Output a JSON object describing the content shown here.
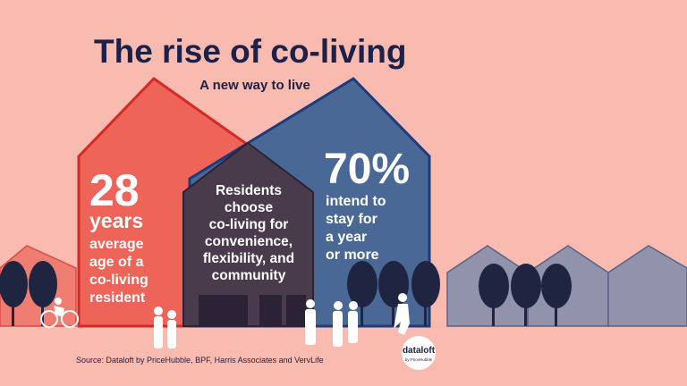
{
  "header": {
    "title": "The rise of co-living",
    "subtitle": "A new way to live"
  },
  "left_stat": {
    "figure": "28",
    "unit": "years",
    "lines": [
      "average",
      "age of a",
      "co-living",
      "resident"
    ]
  },
  "middle_text": {
    "lines": [
      "Residents",
      "choose",
      "co-living for",
      "convenience,",
      "flexibility, and",
      "community"
    ]
  },
  "right_stat": {
    "figure": "70%",
    "lines": [
      "intend to",
      "stay for",
      "a year",
      "or more"
    ]
  },
  "footer": {
    "source": "Source: Dataloft by PriceHubble, BPF, Harris Associates and VervLife"
  },
  "logo": {
    "name": "dataloft",
    "tagline": "by PriceHubble"
  }
}
